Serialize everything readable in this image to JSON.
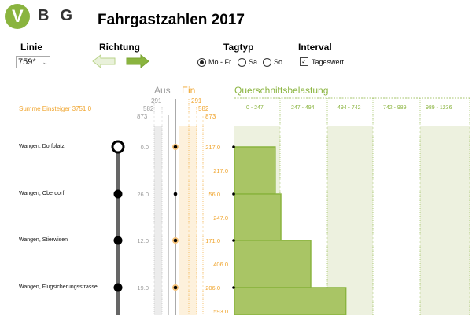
{
  "app": {
    "logo_letters": "BG",
    "logo_v": "V",
    "title": "Fahrgastzahlen 2017"
  },
  "controls": {
    "linie_label": "Linie",
    "linie_value": "759*",
    "richtung_label": "Richtung",
    "tagtyp_label": "Tagtyp",
    "tagtyp_options": [
      "Mo - Fr",
      "Sa",
      "So"
    ],
    "tagtyp_selected": "Mo - Fr",
    "interval_label": "Interval",
    "interval_option": "Tageswert",
    "interval_checked": true
  },
  "board": {
    "aus_label": "Aus",
    "ein_label": "Ein",
    "section_label": "Querschnittsbelastung",
    "sum_label": "Summe Einsteiger 3751.0",
    "aus_ticks": [
      "291",
      "582",
      "873"
    ],
    "ein_ticks": [
      "291",
      "582",
      "873"
    ],
    "segments": [
      "0 - 247",
      "247 - 494",
      "494 - 742",
      "742 - 989",
      "989 - 1236"
    ],
    "stops": [
      {
        "name": "Wangen, Dorfplatz",
        "aus": "0.0",
        "ein": "217.0",
        "load": "217.0",
        "load_value": 217,
        "first": true
      },
      {
        "name": "Wangen, Oberdorf",
        "aus": "26.0",
        "ein": "56.0",
        "load": "247.0",
        "load_value": 247
      },
      {
        "name": "Wangen, Stierwisen",
        "aus": "12.0",
        "ein": "171.0",
        "load": "406.0",
        "load_value": 406
      },
      {
        "name": "Wangen, Flugsicherungsstrasse",
        "aus": "19.0",
        "ein": "206.0",
        "load": "593.0",
        "load_value": 593
      }
    ],
    "max_load": 1236,
    "colors": {
      "green": "#8ab43f",
      "green_fill": "#a9c565",
      "orange": "#f0a42c",
      "grey": "#9a9a9a",
      "shade": "#edf1df"
    }
  }
}
